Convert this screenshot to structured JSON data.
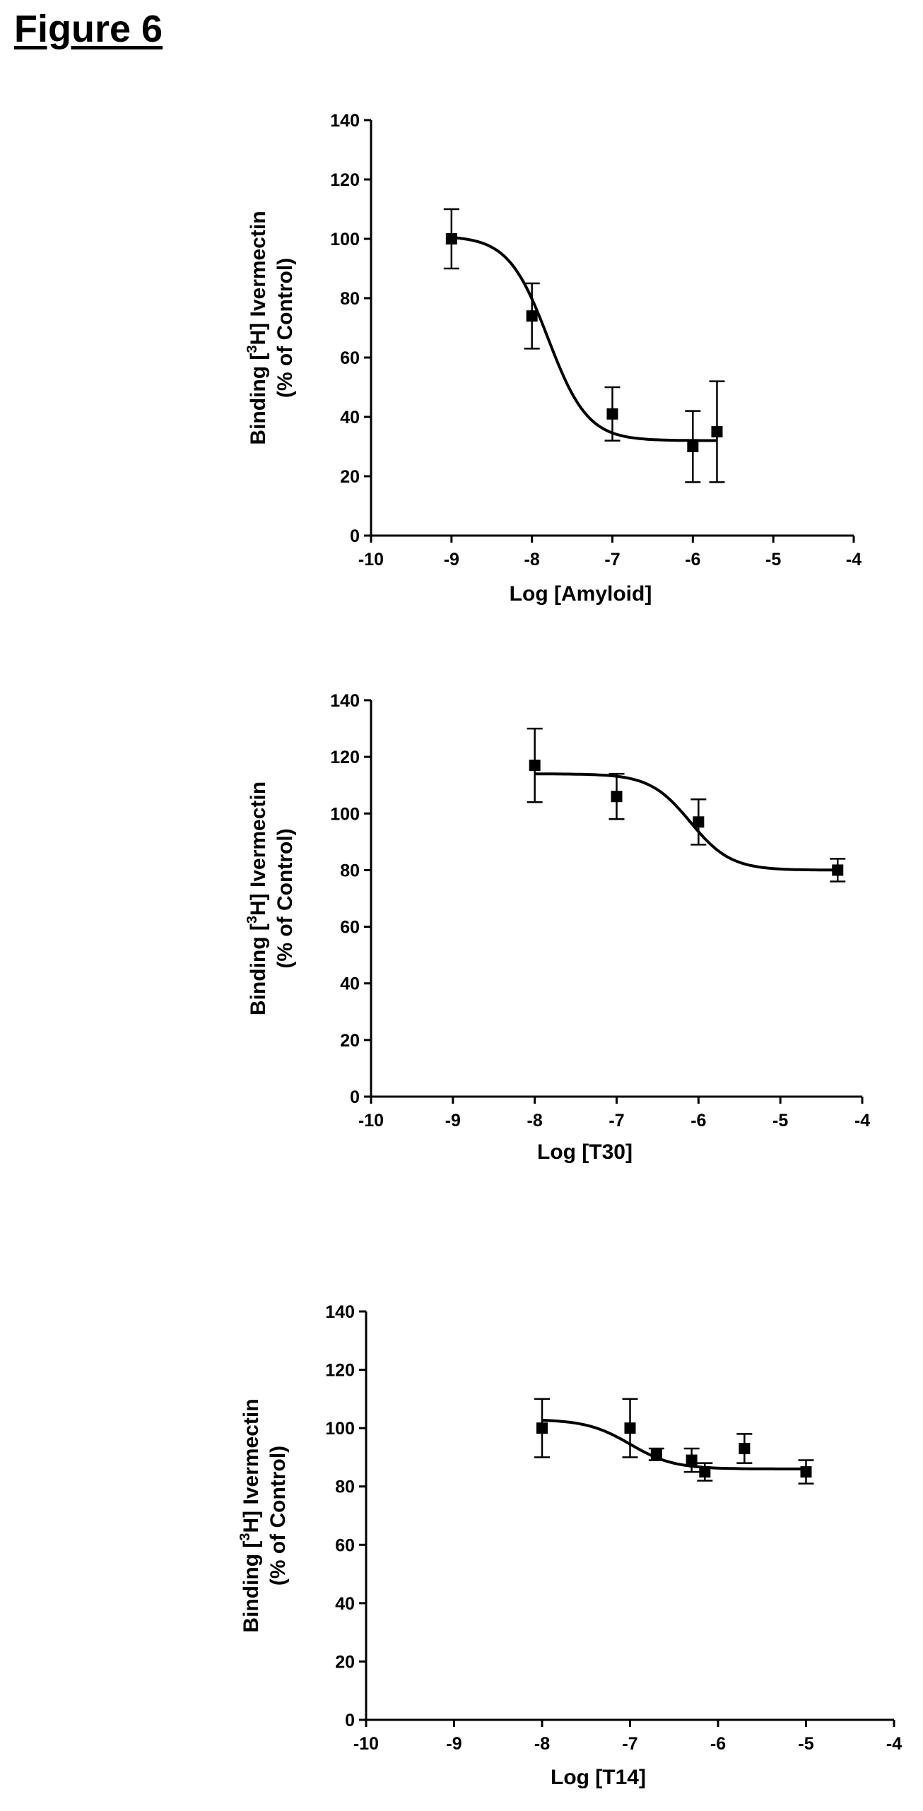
{
  "figure_title": "Figure 6",
  "chart_data": [
    {
      "type": "scatter",
      "title": "",
      "xlabel": "Log [Amyloid]",
      "ylabel_line1": "Binding [",
      "ylabel_sup": "3",
      "ylabel_line1_tail": "H] Ivermectin",
      "ylabel_line2": "(% of Control)",
      "xlim": [
        -10,
        -4
      ],
      "ylim": [
        0,
        140
      ],
      "xticks": [
        "-10",
        "-9",
        "-8",
        "-7",
        "-6",
        "-5",
        "-4"
      ],
      "yticks": [
        "0",
        "20",
        "40",
        "60",
        "80",
        "100",
        "120",
        "140"
      ],
      "series": [
        {
          "x": [
            -9,
            -8,
            -7,
            -6,
            -5.7
          ],
          "y": [
            100,
            74,
            41,
            30,
            35
          ],
          "err": [
            10,
            11,
            9,
            12,
            17
          ]
        }
      ],
      "fit": {
        "top": 101,
        "bottom": 32,
        "logic50": -7.8,
        "hill": 0.8,
        "x_start": -9,
        "x_end": -5.7
      }
    },
    {
      "type": "scatter",
      "title": "",
      "xlabel": "Log [T30]",
      "ylabel_line1": "Binding [",
      "ylabel_sup": "3",
      "ylabel_line1_tail": "H] Ivermectin",
      "ylabel_line2": "(% of Control)",
      "xlim": [
        -10,
        -4
      ],
      "ylim": [
        0,
        140
      ],
      "xticks": [
        "-10",
        "-9",
        "-8",
        "-7",
        "-6",
        "-5",
        "-4"
      ],
      "yticks": [
        "0",
        "20",
        "40",
        "60",
        "80",
        "100",
        "120",
        "140"
      ],
      "series": [
        {
          "x": [
            -8,
            -7,
            -6,
            -4.3
          ],
          "y": [
            117,
            106,
            97,
            80
          ],
          "err": [
            13,
            8,
            8,
            4
          ]
        }
      ],
      "fit": {
        "top": 114,
        "bottom": 80,
        "logic50": -6.1,
        "hill": 0.8,
        "x_start": -8,
        "x_end": -4.3
      }
    },
    {
      "type": "scatter",
      "title": "",
      "xlabel": "Log [T14]",
      "ylabel_line1": "Binding [",
      "ylabel_sup": "3",
      "ylabel_line1_tail": "H] Ivermectin",
      "ylabel_line2": "(% of Control)",
      "xlim": [
        -10,
        -4
      ],
      "ylim": [
        0,
        140
      ],
      "xticks": [
        "-10",
        "-9",
        "-8",
        "-7",
        "-6",
        "-5",
        "-4"
      ],
      "yticks": [
        "0",
        "20",
        "40",
        "60",
        "80",
        "100",
        "120",
        "140"
      ],
      "series": [
        {
          "x": [
            -8,
            -7,
            -6.7,
            -6.3,
            -6.15,
            -5.7,
            -5
          ],
          "y": [
            100,
            100,
            91,
            89,
            85,
            93,
            85
          ],
          "err": [
            10,
            10,
            2,
            4,
            3,
            5,
            4
          ]
        }
      ],
      "fit": {
        "top": 103,
        "bottom": 86,
        "logic50": -7.0,
        "hill": 0.8,
        "x_start": -8,
        "x_end": -5
      }
    }
  ]
}
